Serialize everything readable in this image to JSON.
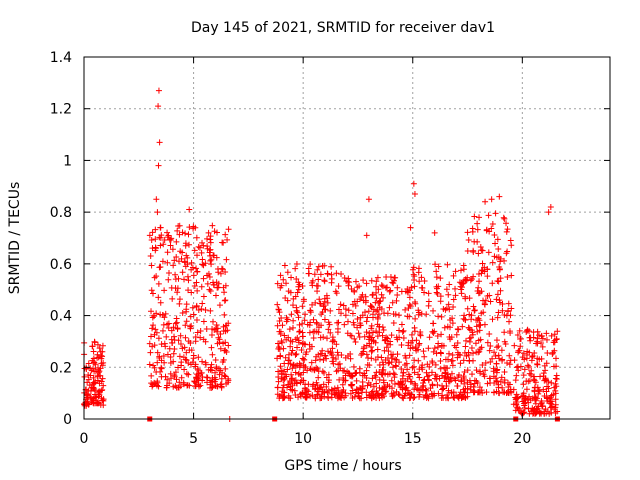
{
  "chart_data": {
    "type": "scatter",
    "title": "Day 145 of 2021, SRMTID for receiver dav1",
    "xlabel": "GPS time / hours",
    "ylabel": "SRMTID / TECUs",
    "xlim": [
      0,
      24
    ],
    "ylim": [
      0,
      1.4
    ],
    "x_ticks": [
      0,
      5,
      10,
      15,
      20
    ],
    "y_ticks": [
      0,
      0.2,
      0.4,
      0.6,
      0.8,
      1,
      1.2,
      1.4
    ],
    "x_tick_labels": [
      "0",
      "5",
      "10",
      "15",
      "20"
    ],
    "y_tick_labels": [
      "0",
      "0.2",
      "0.4",
      "0.6",
      "0.8",
      "1",
      "1.2",
      "1.4"
    ],
    "grid": true,
    "marker": "plus",
    "color": "#ff0000",
    "series": [
      {
        "name": "dav1",
        "description": "Approximate dense cloud of SRMTID points between 0 and ~1.27 TECU",
        "segments": [
          {
            "x": [
              0.0,
              0.9
            ],
            "y_range": [
              0.05,
              0.3
            ],
            "count": 120
          },
          {
            "x": [
              3.0,
              6.6
            ],
            "y_range": [
              0.12,
              0.75
            ],
            "count": 420
          },
          {
            "x": [
              8.8,
              11.8
            ],
            "y_range": [
              0.08,
              0.6
            ],
            "count": 380
          },
          {
            "x": [
              11.8,
              15.0
            ],
            "y_range": [
              0.08,
              0.55
            ],
            "count": 380
          },
          {
            "x": [
              15.0,
              17.5
            ],
            "y_range": [
              0.08,
              0.6
            ],
            "count": 280
          },
          {
            "x": [
              17.5,
              19.5
            ],
            "y_range": [
              0.1,
              0.8
            ],
            "count": 240
          },
          {
            "x": [
              19.6,
              21.6
            ],
            "y_range": [
              0.02,
              0.35
            ],
            "count": 220
          }
        ],
        "highlights": [
          {
            "x": 3.42,
            "y": 1.27
          },
          {
            "x": 3.38,
            "y": 1.21
          },
          {
            "x": 3.45,
            "y": 1.07
          },
          {
            "x": 3.4,
            "y": 0.98
          },
          {
            "x": 3.3,
            "y": 0.85
          },
          {
            "x": 3.35,
            "y": 0.8
          },
          {
            "x": 4.8,
            "y": 0.81
          },
          {
            "x": 13.0,
            "y": 0.85
          },
          {
            "x": 15.05,
            "y": 0.91
          },
          {
            "x": 15.1,
            "y": 0.87
          },
          {
            "x": 14.9,
            "y": 0.74
          },
          {
            "x": 18.6,
            "y": 0.85
          },
          {
            "x": 18.95,
            "y": 0.86
          },
          {
            "x": 18.3,
            "y": 0.84
          },
          {
            "x": 21.3,
            "y": 0.82
          },
          {
            "x": 21.2,
            "y": 0.8
          },
          {
            "x": 3.5,
            "y": 0.74
          },
          {
            "x": 12.9,
            "y": 0.71
          },
          {
            "x": 16.0,
            "y": 0.72
          }
        ],
        "zero_markers": [
          3.0,
          8.7,
          19.7,
          21.6
        ],
        "isolated": [
          {
            "x": 6.65,
            "y": 0.0
          }
        ]
      }
    ]
  }
}
